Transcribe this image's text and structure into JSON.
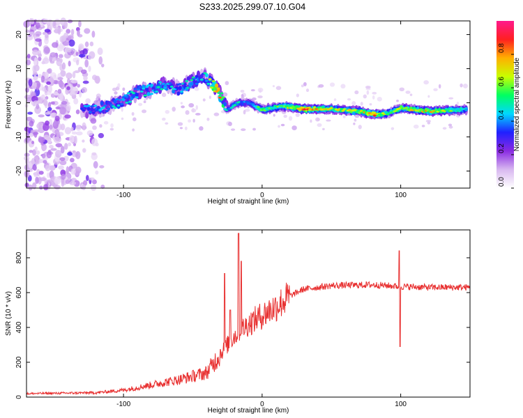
{
  "title": "S233.2025.299.07.10.G04",
  "chart_data": [
    {
      "type": "heatmap",
      "name": "spectrogram",
      "xlabel": "Height of straight line (km)",
      "ylabel": "Frequency (Hz)",
      "xlim": [
        -170,
        150
      ],
      "ylim": [
        -25,
        24
      ],
      "xticks": [
        -100,
        0,
        100
      ],
      "yticks": [
        -20,
        -10,
        0,
        10,
        20
      ],
      "colorbar": {
        "label": "Normalized spectral amplitude",
        "range": [
          0,
          1
        ],
        "ticks": [
          0.0,
          0.2,
          0.4,
          0.6,
          0.8
        ],
        "colors": [
          "#ffffff",
          "#d8b8f0",
          "#8a2be2",
          "#2020ff",
          "#00d8ff",
          "#00ff60",
          "#c8ff00",
          "#ffb000",
          "#ff2020",
          "#ff1a8c"
        ]
      },
      "ridge": [
        {
          "x": -130,
          "f": -2.5,
          "a": 0.35
        },
        {
          "x": -120,
          "f": -2.0,
          "a": 0.4
        },
        {
          "x": -110,
          "f": -1.0,
          "a": 0.4
        },
        {
          "x": -100,
          "f": 0.5,
          "a": 0.45
        },
        {
          "x": -90,
          "f": 3.0,
          "a": 0.45
        },
        {
          "x": -80,
          "f": 4.0,
          "a": 0.45
        },
        {
          "x": -70,
          "f": 5.5,
          "a": 0.45
        },
        {
          "x": -60,
          "f": 4.0,
          "a": 0.4
        },
        {
          "x": -50,
          "f": 6.5,
          "a": 0.45
        },
        {
          "x": -42,
          "f": 8.0,
          "a": 0.4
        },
        {
          "x": -32,
          "f": 4.0,
          "a": 0.85
        },
        {
          "x": -25,
          "f": -2.0,
          "a": 0.4
        },
        {
          "x": -18,
          "f": 0.0,
          "a": 0.45
        },
        {
          "x": -10,
          "f": 0.0,
          "a": 0.4
        },
        {
          "x": 0,
          "f": -2.0,
          "a": 0.55
        },
        {
          "x": 15,
          "f": -1.0,
          "a": 0.55
        },
        {
          "x": 30,
          "f": -1.8,
          "a": 0.8
        },
        {
          "x": 50,
          "f": -1.8,
          "a": 0.6
        },
        {
          "x": 70,
          "f": -2.5,
          "a": 0.65
        },
        {
          "x": 82,
          "f": -3.5,
          "a": 0.75
        },
        {
          "x": 92,
          "f": -3.0,
          "a": 0.5
        },
        {
          "x": 100,
          "f": -1.5,
          "a": 0.6
        },
        {
          "x": 120,
          "f": -2.5,
          "a": 0.7
        },
        {
          "x": 148,
          "f": -2.0,
          "a": 0.5
        }
      ]
    },
    {
      "type": "line",
      "name": "snr",
      "xlabel": "Height of straight line (km)",
      "ylabel": "SNR (10 * v/v)",
      "xlim": [
        -170,
        150
      ],
      "ylim": [
        0,
        960
      ],
      "xticks": [
        -100,
        0,
        100
      ],
      "yticks": [
        0,
        200,
        400,
        600,
        800
      ],
      "color": "#e83030",
      "envelope": {
        "x": [
          -170,
          -120,
          -100,
          -80,
          -60,
          -40,
          -30,
          -20,
          -10,
          0,
          10,
          20,
          30,
          50,
          80,
          100,
          120,
          150
        ],
        "y": [
          20,
          25,
          40,
          70,
          100,
          140,
          250,
          350,
          420,
          470,
          520,
          580,
          620,
          640,
          645,
          635,
          630,
          630
        ]
      },
      "spikes": [
        {
          "x": -27,
          "y": 710
        },
        {
          "x": -23,
          "y": 500
        },
        {
          "x": -17,
          "y": 940
        },
        {
          "x": -15,
          "y": 780
        },
        {
          "x": 99,
          "y": 840
        },
        {
          "x": 99.5,
          "y": 290
        }
      ]
    }
  ]
}
